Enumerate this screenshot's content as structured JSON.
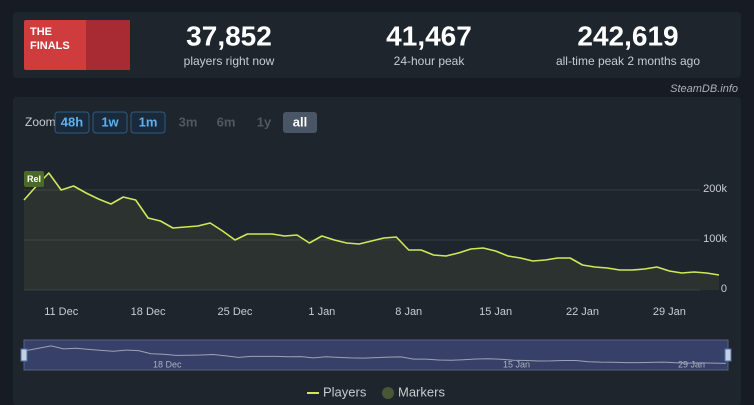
{
  "header": {
    "logo": [
      "THE",
      "FINALS"
    ],
    "stats": [
      {
        "value": "37,852",
        "label": "players right now"
      },
      {
        "value": "41,467",
        "label": "24-hour peak"
      },
      {
        "value": "242,619",
        "label": "all-time peak 2 months ago"
      }
    ],
    "source": "SteamDB.info"
  },
  "zoom": {
    "label": "Zoom",
    "buttons": [
      {
        "text": "48h",
        "state": "enabled"
      },
      {
        "text": "1w",
        "state": "enabled"
      },
      {
        "text": "1m",
        "state": "enabled"
      },
      {
        "text": "3m",
        "state": "disabled"
      },
      {
        "text": "6m",
        "state": "disabled"
      },
      {
        "text": "1y",
        "state": "disabled"
      },
      {
        "text": "all",
        "state": "selected"
      }
    ]
  },
  "chart_data": {
    "type": "line",
    "categories": [
      null,
      null,
      null,
      "11 Dec",
      null,
      null,
      null,
      null,
      null,
      null,
      "18 Dec",
      null,
      null,
      null,
      null,
      null,
      null,
      "25 Dec",
      null,
      null,
      null,
      null,
      null,
      null,
      "1 Jan",
      null,
      null,
      null,
      null,
      null,
      null,
      "8 Jan",
      null,
      null,
      null,
      null,
      null,
      null,
      "15 Jan",
      null,
      null,
      null,
      null,
      null,
      null,
      "22 Jan",
      null,
      null,
      null,
      null,
      null,
      null,
      "29 Jan",
      null,
      null,
      null,
      null
    ],
    "series": [
      {
        "name": "Players",
        "color": "#cfe85a",
        "values": [
          180000,
          208000,
          234000,
          200000,
          208000,
          194000,
          182000,
          172000,
          186000,
          180000,
          144000,
          138000,
          124000,
          126000,
          128000,
          134000,
          118000,
          100000,
          112000,
          112000,
          112000,
          108000,
          110000,
          94000,
          108000,
          100000,
          94000,
          92000,
          98000,
          104000,
          106000,
          80000,
          80000,
          70000,
          68000,
          74000,
          82000,
          84000,
          78000,
          68000,
          64000,
          58000,
          60000,
          64000,
          64000,
          50000,
          46000,
          44000,
          40000,
          40000,
          42000,
          46000,
          38000,
          34000,
          36000,
          34000,
          30000
        ]
      }
    ],
    "markers": {
      "name": "Markers",
      "color": "#4a5636"
    },
    "annotations": [
      "Rel"
    ],
    "ylim": [
      0,
      280000
    ],
    "yticks": [
      0,
      {
        "value": 100000,
        "label": "100k"
      },
      {
        "value": 200000,
        "label": "200k"
      }
    ],
    "grid": true
  }
}
